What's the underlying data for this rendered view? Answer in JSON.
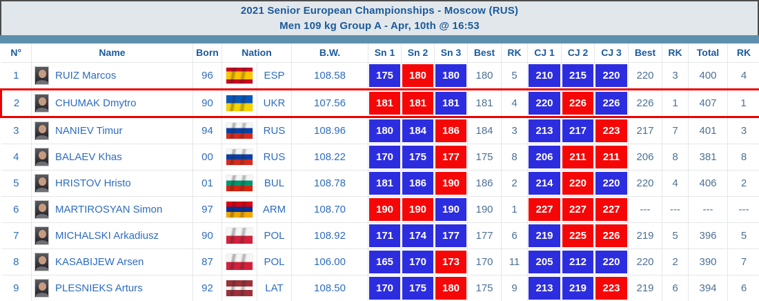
{
  "header": {
    "title_line1": "2021 Senior European Championships - Moscow (RUS)",
    "title_line2": "Men 109 kg Group A - Apr, 10th @ 16:53"
  },
  "colors": {
    "good_lift": "#2d2de0",
    "no_lift": "#f60707",
    "header_text": "#1a5a9b",
    "accent_bar": "#5e8fae",
    "highlight_border": "#ec0000"
  },
  "flags": {
    "ESP": [
      [
        "#c60b1e",
        25
      ],
      [
        "#ffc400",
        75
      ],
      [
        "#c60b1e",
        100
      ]
    ],
    "UKR": [
      [
        "#0a57bb",
        50
      ],
      [
        "#f5d400",
        100
      ]
    ],
    "RUS": [
      [
        "#f5f5f5",
        33
      ],
      [
        "#0a3fa6",
        66
      ],
      [
        "#d52b1e",
        100
      ]
    ],
    "BUL": [
      [
        "#f5f5f5",
        33
      ],
      [
        "#00966e",
        66
      ],
      [
        "#d62612",
        100
      ]
    ],
    "ARM": [
      [
        "#d90012",
        33
      ],
      [
        "#0033a0",
        66
      ],
      [
        "#f2a800",
        100
      ]
    ],
    "POL": [
      [
        "#f5f5f5",
        50
      ],
      [
        "#d4213d",
        100
      ]
    ],
    "LAT": [
      [
        "#9e3039",
        40
      ],
      [
        "#f5f5f5",
        60
      ],
      [
        "#9e3039",
        100
      ]
    ]
  },
  "table": {
    "columns": [
      {
        "label": "N°"
      },
      {
        "label": "Name"
      },
      {
        "label": "Born"
      },
      {
        "label": "Nation",
        "span": 2
      },
      {
        "label": "B.W."
      },
      {
        "label": "Sn 1"
      },
      {
        "label": "Sn 2"
      },
      {
        "label": "Sn 3"
      },
      {
        "label": "Best"
      },
      {
        "label": "RK"
      },
      {
        "label": "CJ 1"
      },
      {
        "label": "CJ 2"
      },
      {
        "label": "CJ 3"
      },
      {
        "label": "Best"
      },
      {
        "label": "RK"
      },
      {
        "label": "Total"
      },
      {
        "label": "RK"
      }
    ],
    "rows": [
      {
        "n": "1",
        "name": "RUIZ Marcos",
        "born": "96",
        "nation": "ESP",
        "bw": "108.58",
        "sn": [
          {
            "v": "175",
            "r": "good"
          },
          {
            "v": "180",
            "r": "no"
          },
          {
            "v": "180",
            "r": "good"
          }
        ],
        "sn_best": "180",
        "sn_rk": "5",
        "cj": [
          {
            "v": "210",
            "r": "good"
          },
          {
            "v": "215",
            "r": "good"
          },
          {
            "v": "220",
            "r": "good"
          }
        ],
        "cj_best": "220",
        "cj_rk": "3",
        "total": "400",
        "total_rk": "4",
        "highlighted": false
      },
      {
        "n": "2",
        "name": "CHUMAK Dmytro",
        "born": "90",
        "nation": "UKR",
        "bw": "107.56",
        "sn": [
          {
            "v": "181",
            "r": "no"
          },
          {
            "v": "181",
            "r": "no"
          },
          {
            "v": "181",
            "r": "good"
          }
        ],
        "sn_best": "181",
        "sn_rk": "4",
        "cj": [
          {
            "v": "220",
            "r": "good"
          },
          {
            "v": "226",
            "r": "no"
          },
          {
            "v": "226",
            "r": "good"
          }
        ],
        "cj_best": "226",
        "cj_rk": "1",
        "total": "407",
        "total_rk": "1",
        "highlighted": true
      },
      {
        "n": "3",
        "name": "NANIEV Timur",
        "born": "94",
        "nation": "RUS",
        "bw": "108.96",
        "sn": [
          {
            "v": "180",
            "r": "good"
          },
          {
            "v": "184",
            "r": "good"
          },
          {
            "v": "186",
            "r": "no"
          }
        ],
        "sn_best": "184",
        "sn_rk": "3",
        "cj": [
          {
            "v": "213",
            "r": "good"
          },
          {
            "v": "217",
            "r": "good"
          },
          {
            "v": "223",
            "r": "no"
          }
        ],
        "cj_best": "217",
        "cj_rk": "7",
        "total": "401",
        "total_rk": "3",
        "highlighted": false
      },
      {
        "n": "4",
        "name": "BALAEV Khas",
        "born": "00",
        "nation": "RUS",
        "bw": "108.22",
        "sn": [
          {
            "v": "170",
            "r": "good"
          },
          {
            "v": "175",
            "r": "good"
          },
          {
            "v": "177",
            "r": "no"
          }
        ],
        "sn_best": "175",
        "sn_rk": "8",
        "cj": [
          {
            "v": "206",
            "r": "good"
          },
          {
            "v": "211",
            "r": "no"
          },
          {
            "v": "211",
            "r": "no"
          }
        ],
        "cj_best": "206",
        "cj_rk": "8",
        "total": "381",
        "total_rk": "8",
        "highlighted": false
      },
      {
        "n": "5",
        "name": "HRISTOV Hristo",
        "born": "01",
        "nation": "BUL",
        "bw": "108.78",
        "sn": [
          {
            "v": "181",
            "r": "good"
          },
          {
            "v": "186",
            "r": "good"
          },
          {
            "v": "190",
            "r": "no"
          }
        ],
        "sn_best": "186",
        "sn_rk": "2",
        "cj": [
          {
            "v": "214",
            "r": "good"
          },
          {
            "v": "220",
            "r": "no"
          },
          {
            "v": "220",
            "r": "good"
          }
        ],
        "cj_best": "220",
        "cj_rk": "4",
        "total": "406",
        "total_rk": "2",
        "highlighted": false
      },
      {
        "n": "6",
        "name": "MARTIROSYAN Simon",
        "born": "97",
        "nation": "ARM",
        "bw": "108.70",
        "sn": [
          {
            "v": "190",
            "r": "no"
          },
          {
            "v": "190",
            "r": "no"
          },
          {
            "v": "190",
            "r": "good"
          }
        ],
        "sn_best": "190",
        "sn_rk": "1",
        "cj": [
          {
            "v": "227",
            "r": "no"
          },
          {
            "v": "227",
            "r": "no"
          },
          {
            "v": "227",
            "r": "no"
          }
        ],
        "cj_best": "---",
        "cj_rk": "---",
        "total": "---",
        "total_rk": "---",
        "highlighted": false
      },
      {
        "n": "7",
        "name": "MICHALSKI Arkadiusz",
        "born": "90",
        "nation": "POL",
        "bw": "108.92",
        "sn": [
          {
            "v": "171",
            "r": "good"
          },
          {
            "v": "174",
            "r": "good"
          },
          {
            "v": "177",
            "r": "good"
          }
        ],
        "sn_best": "177",
        "sn_rk": "6",
        "cj": [
          {
            "v": "219",
            "r": "good"
          },
          {
            "v": "225",
            "r": "no"
          },
          {
            "v": "226",
            "r": "no"
          }
        ],
        "cj_best": "219",
        "cj_rk": "5",
        "total": "396",
        "total_rk": "5",
        "highlighted": false
      },
      {
        "n": "8",
        "name": "KASABIJEW Arsen",
        "born": "87",
        "nation": "POL",
        "bw": "106.00",
        "sn": [
          {
            "v": "165",
            "r": "good"
          },
          {
            "v": "170",
            "r": "good"
          },
          {
            "v": "173",
            "r": "no"
          }
        ],
        "sn_best": "170",
        "sn_rk": "11",
        "cj": [
          {
            "v": "205",
            "r": "good"
          },
          {
            "v": "212",
            "r": "good"
          },
          {
            "v": "220",
            "r": "good"
          }
        ],
        "cj_best": "220",
        "cj_rk": "2",
        "total": "390",
        "total_rk": "7",
        "highlighted": false
      },
      {
        "n": "9",
        "name": "PLESNIEKS Arturs",
        "born": "92",
        "nation": "LAT",
        "bw": "108.50",
        "sn": [
          {
            "v": "170",
            "r": "good"
          },
          {
            "v": "175",
            "r": "good"
          },
          {
            "v": "180",
            "r": "no"
          }
        ],
        "sn_best": "175",
        "sn_rk": "9",
        "cj": [
          {
            "v": "213",
            "r": "good"
          },
          {
            "v": "219",
            "r": "good"
          },
          {
            "v": "223",
            "r": "no"
          }
        ],
        "cj_best": "219",
        "cj_rk": "6",
        "total": "394",
        "total_rk": "6",
        "highlighted": false
      }
    ]
  }
}
